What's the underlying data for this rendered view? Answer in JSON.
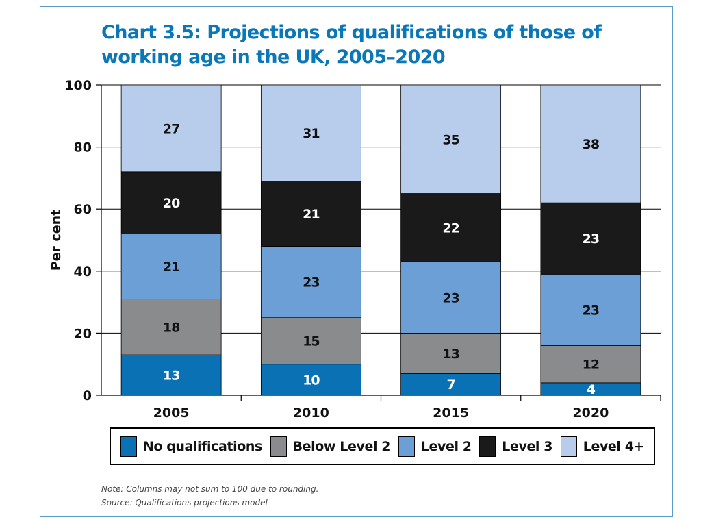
{
  "title": "Chart 3.5: Projections of qualifications of those of working age in the UK, 2005–2020",
  "note": "Note: Columns may not sum to 100 due to rounding.",
  "source": "Source: Qualifications projections model",
  "chart_data": {
    "type": "bar",
    "stacked": true,
    "title": "Chart 3.5: Projections of qualifications of those of working age in the UK, 2005–2020",
    "xlabel": "",
    "ylabel": "Per cent",
    "ylim": [
      0,
      100
    ],
    "yticks": [
      "0",
      "20",
      "40",
      "60",
      "80",
      "100"
    ],
    "grid": true,
    "legend_position": "bottom",
    "categories": [
      "2005",
      "2010",
      "2015",
      "2020"
    ],
    "series": [
      {
        "name": "No qualifications",
        "values": [
          13,
          10,
          7,
          4
        ],
        "color": "#0a71b5",
        "label_color": "#ffffff"
      },
      {
        "name": "Below Level 2",
        "values": [
          18,
          15,
          13,
          12
        ],
        "color": "#8a8b8d",
        "label_color": "#111111"
      },
      {
        "name": "Level 2",
        "values": [
          21,
          23,
          23,
          23
        ],
        "color": "#6b9fd6",
        "label_color": "#111111"
      },
      {
        "name": "Level 3",
        "values": [
          20,
          21,
          22,
          23
        ],
        "color": "#1a1a1a",
        "label_color": "#ffffff"
      },
      {
        "name": "Level 4+",
        "values": [
          27,
          31,
          35,
          38
        ],
        "color": "#b8ccec",
        "label_color": "#111111"
      }
    ]
  }
}
